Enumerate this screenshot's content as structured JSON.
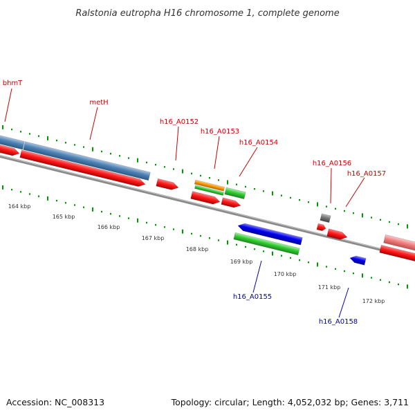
{
  "title": "Ralstonia eutropha H16 chromosome 1, complete genome",
  "footer": {
    "accession": "Accession: NC_008313",
    "summary": "Topology: circular; Length: 4,052,032 bp; Genes: 3,711"
  },
  "colors": {
    "forward_label": "#cc0000",
    "reverse_label": "#0000aa",
    "cds": "#ff0000",
    "gene_blue": "#4f83b5",
    "gene_green": "#33cc33",
    "gene_orange": "#ff9900",
    "gene_gray": "#777777",
    "gene_pink": "#f08080",
    "reverse_blue": "#0000ee",
    "backbone": "#888888",
    "ticks": "#009900"
  },
  "scale_labels": [
    "164 kbp",
    "165 kbp",
    "166 kbp",
    "167 kbp",
    "168 kbp",
    "169 kbp",
    "170 kbp",
    "171 kbp",
    "172 kbp"
  ],
  "forward_labels": [
    "bhmT",
    "metH",
    "h16_A0152",
    "h16_A0153",
    "h16_A0154",
    "h16_A0156",
    "h16_A0157"
  ],
  "reverse_labels": [
    "h16_A0155",
    "h16_A0158"
  ]
}
